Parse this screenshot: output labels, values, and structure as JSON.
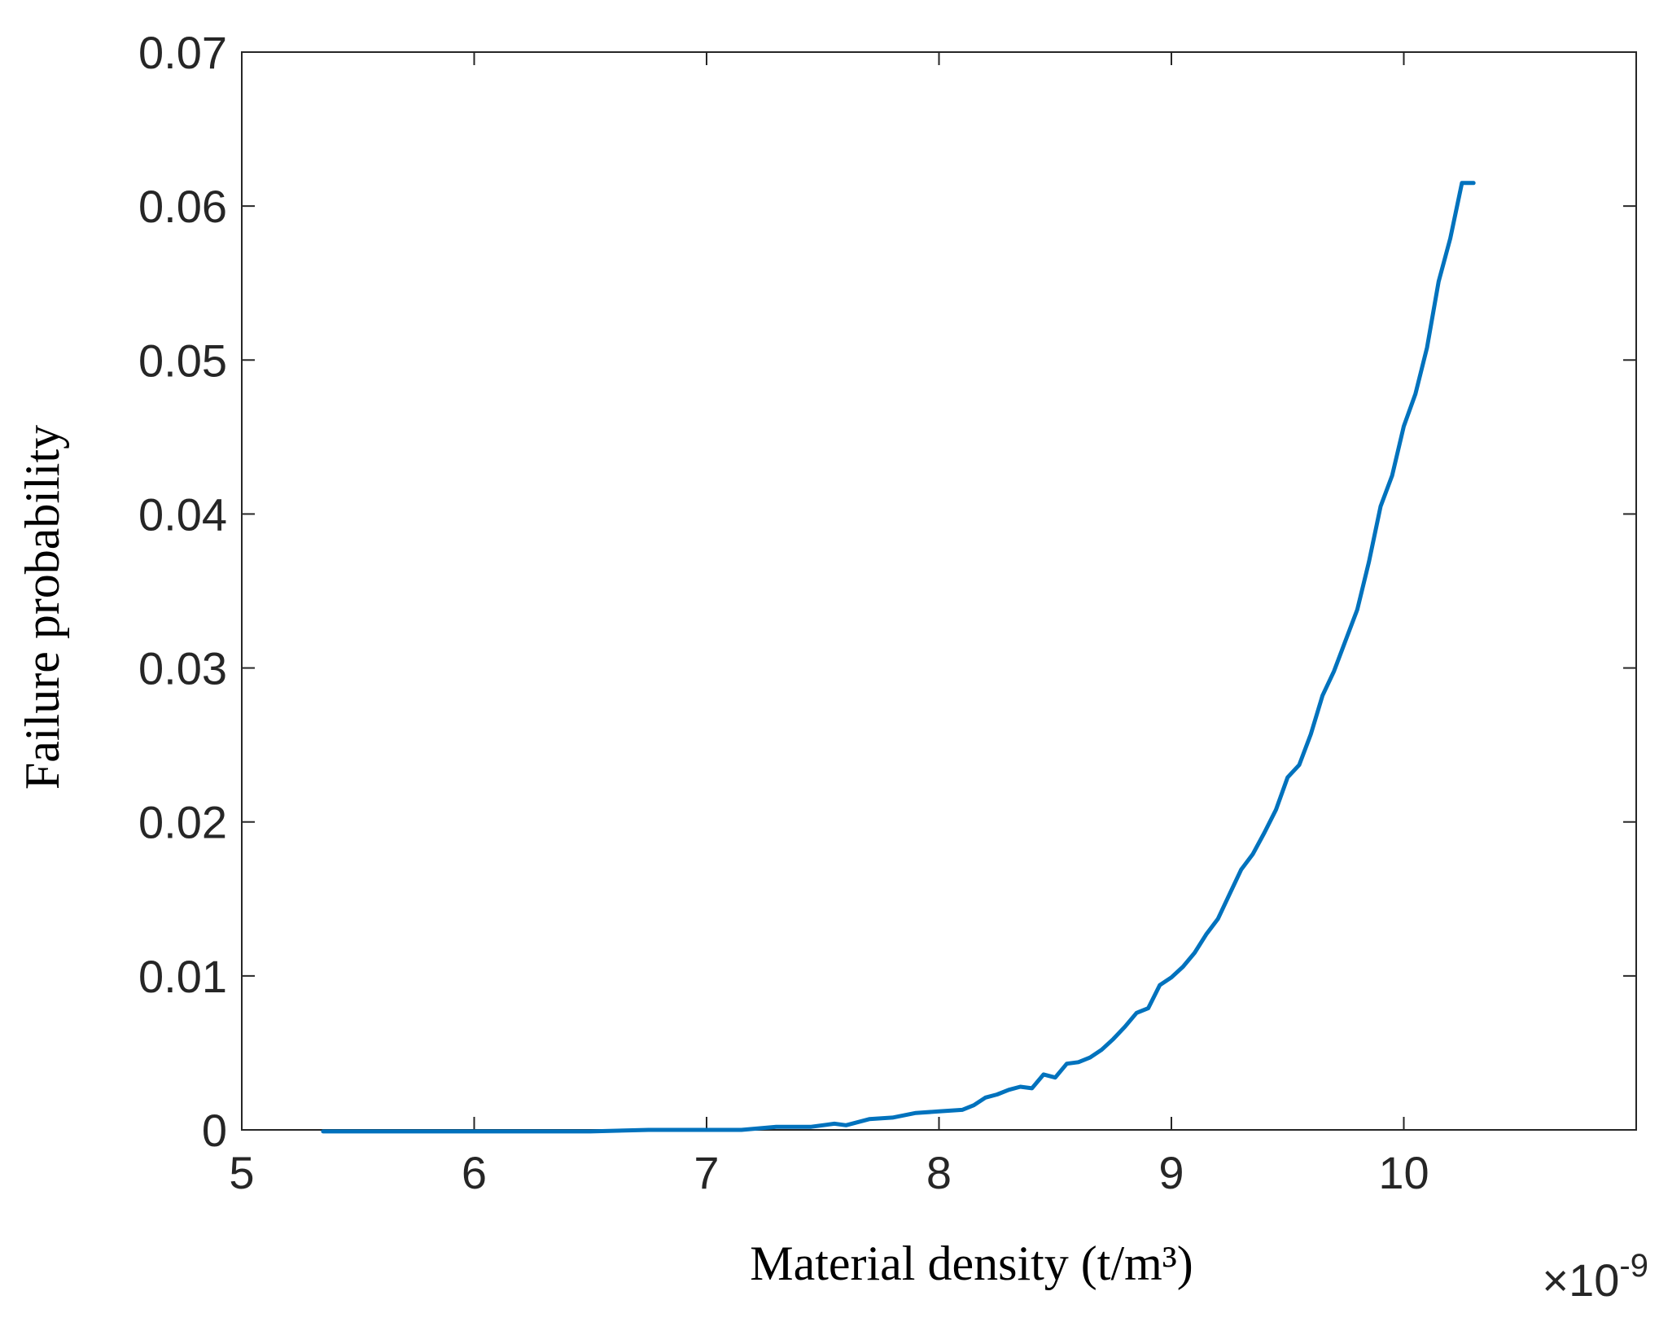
{
  "chart_data": {
    "type": "line",
    "xlabel": "Material density (t/m³)",
    "ylabel": "Failure probability",
    "x_exponent_label": {
      "times": "×10",
      "exp": "-9"
    },
    "xlim": [
      5,
      11
    ],
    "ylim": [
      0,
      0.07
    ],
    "xticks": [
      "5",
      "6",
      "7",
      "8",
      "9",
      "10"
    ],
    "yticks": [
      "0",
      "0.01",
      "0.02",
      "0.03",
      "0.04",
      "0.05",
      "0.06",
      "0.07"
    ],
    "grid": false,
    "line_color": "#0072BD",
    "series": [
      {
        "x": [
          5.35,
          5.6,
          5.9,
          6.2,
          6.5,
          6.75,
          7.0,
          7.15,
          7.3,
          7.45,
          7.55,
          7.6,
          7.7,
          7.8,
          7.9,
          8.0,
          8.1,
          8.15,
          8.2,
          8.25,
          8.3,
          8.35,
          8.4,
          8.45,
          8.5,
          8.55,
          8.6,
          8.65,
          8.7,
          8.75,
          8.8,
          8.85,
          8.9,
          8.95,
          9.0,
          9.05,
          9.1,
          9.15,
          9.2,
          9.25,
          9.3,
          9.35,
          9.4,
          9.45,
          9.5,
          9.55,
          9.6,
          9.65,
          9.7,
          9.75,
          9.8,
          9.85,
          9.9,
          9.95,
          10.0,
          10.05,
          10.1,
          10.15,
          10.2,
          10.25,
          10.3
        ],
        "y": [
          -0.0001,
          -0.0001,
          -0.0001,
          -0.0001,
          -0.0001,
          0.0,
          0.0,
          0.0,
          0.0002,
          0.0002,
          0.0004,
          0.0003,
          0.0007,
          0.0008,
          0.0011,
          0.0012,
          0.0013,
          0.0016,
          0.0021,
          0.0023,
          0.0026,
          0.0028,
          0.0027,
          0.0036,
          0.0034,
          0.0043,
          0.0044,
          0.0047,
          0.0052,
          0.0059,
          0.0067,
          0.0076,
          0.0079,
          0.0094,
          0.0099,
          0.0106,
          0.0115,
          0.0127,
          0.0137,
          0.0153,
          0.0169,
          0.0179,
          0.0193,
          0.0208,
          0.0229,
          0.0237,
          0.0257,
          0.0282,
          0.0298,
          0.0318,
          0.0338,
          0.0369,
          0.0405,
          0.0425,
          0.0457,
          0.0478,
          0.0508,
          0.0551,
          0.0579,
          0.0615,
          0.0615
        ]
      }
    ]
  }
}
